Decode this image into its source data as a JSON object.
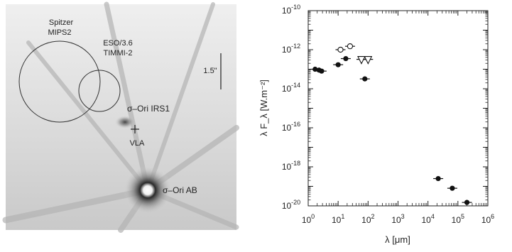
{
  "image_panel": {
    "circle_labels": [
      {
        "line1": "Spitzer",
        "line2": "MIPS2"
      },
      {
        "line1": "ESO/3.6",
        "line2": "TIMMI-2"
      }
    ],
    "scale_bar_label": "1.5\"",
    "source_labels": {
      "irs1": "σ–Ori  IRS1",
      "vla": "VLA",
      "ab": "σ–Ori AB"
    }
  },
  "chart_data": {
    "type": "scatter",
    "title": "",
    "xlabel": "λ [μm]",
    "ylabel": "λ F_λ [W.m⁻²]",
    "xscale": "log",
    "yscale": "log",
    "xlim": [
      1,
      1000000
    ],
    "ylim": [
      1e-20,
      1e-10
    ],
    "x_ticks": [
      {
        "value": 1,
        "base": "10",
        "exp": "0"
      },
      {
        "value": 10,
        "base": "10",
        "exp": "1"
      },
      {
        "value": 100,
        "base": "10",
        "exp": "2"
      },
      {
        "value": 1000,
        "base": "10",
        "exp": "3"
      },
      {
        "value": 10000,
        "base": "10",
        "exp": "4"
      },
      {
        "value": 100000,
        "base": "10",
        "exp": "5"
      },
      {
        "value": 1000000,
        "base": "10",
        "exp": "6"
      }
    ],
    "y_ticks": [
      {
        "value": 1e-20,
        "base": "10",
        "exp": "-20"
      },
      {
        "value": 1e-18,
        "base": "10",
        "exp": "-18"
      },
      {
        "value": 1e-16,
        "base": "10",
        "exp": "-16"
      },
      {
        "value": 1e-14,
        "base": "10",
        "exp": "-14"
      },
      {
        "value": 1e-12,
        "base": "10",
        "exp": "-12"
      },
      {
        "value": 1e-10,
        "base": "10",
        "exp": "-10"
      }
    ],
    "grid": false,
    "series": [
      {
        "marker": "filled-circle",
        "points": [
          {
            "x": 1.7,
            "y": 1e-13
          },
          {
            "x": 2.3,
            "y": 9e-14
          },
          {
            "x": 2.8,
            "y": 8e-14
          },
          {
            "x": 10,
            "y": 1.7e-13
          },
          {
            "x": 18,
            "y": 3.5e-13
          },
          {
            "x": 78,
            "y": 3.2e-14
          },
          {
            "x": 22000.0,
            "y": 2.5e-19
          },
          {
            "x": 65000.0,
            "y": 8e-20
          },
          {
            "x": 200000.0,
            "y": 1.5e-20
          }
        ]
      },
      {
        "marker": "open-circle",
        "points": [
          {
            "x": 12,
            "y": 1e-12
          },
          {
            "x": 25,
            "y": 1.5e-12
          }
        ]
      },
      {
        "marker": "open-triangle-down",
        "points": [
          {
            "x": 60,
            "y": 3.2e-13
          },
          {
            "x": 100,
            "y": 3.2e-13
          }
        ]
      }
    ]
  }
}
